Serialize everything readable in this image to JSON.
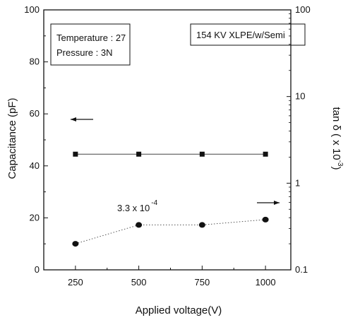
{
  "chart_data": {
    "type": "line",
    "xlabel": "Applied voltage(V)",
    "ylabel_left": "Capacitance (pF)",
    "ylabel_right": "tan δ  ( x 10",
    "ylabel_right_exp": "-3",
    "ylabel_right_close": ")",
    "x": [
      250,
      500,
      750,
      1000
    ],
    "x_tick_labels": [
      "250",
      "500",
      "750",
      "1000"
    ],
    "xlim": [
      125,
      1100
    ],
    "ylim_left": [
      0,
      100
    ],
    "y_left_ticks": [
      0,
      20,
      40,
      60,
      80,
      100
    ],
    "y_left_tick_labels": [
      "0",
      "20",
      "40",
      "60",
      "80",
      "100"
    ],
    "ylim_right": [
      0.1,
      100
    ],
    "y_right_scale": "log",
    "y_right_ticks": [
      0.1,
      1,
      10,
      100
    ],
    "y_right_tick_labels": [
      "0.1",
      "1",
      "10",
      "100"
    ],
    "series": [
      {
        "axis": "left",
        "marker": "square",
        "line": "solid",
        "values": [
          44.5,
          44.5,
          44.5,
          44.5
        ]
      },
      {
        "axis": "right",
        "marker": "circle",
        "line": "dotted",
        "values": [
          0.2,
          0.33,
          0.33,
          0.38
        ]
      }
    ],
    "annotations": {
      "value_text": "3.3 x 10",
      "value_exp": "-4",
      "left_arrow": "points to left axis",
      "right_arrow": "points to right axis"
    },
    "legend_box_left": {
      "line1": "Temperature : 27",
      "line2": "Pressure : 3N"
    },
    "legend_box_right": {
      "line1": "154 KV XLPE/w/Semi"
    },
    "grid": false
  },
  "colors": {
    "ink": "#111111",
    "background": "#ffffff"
  }
}
